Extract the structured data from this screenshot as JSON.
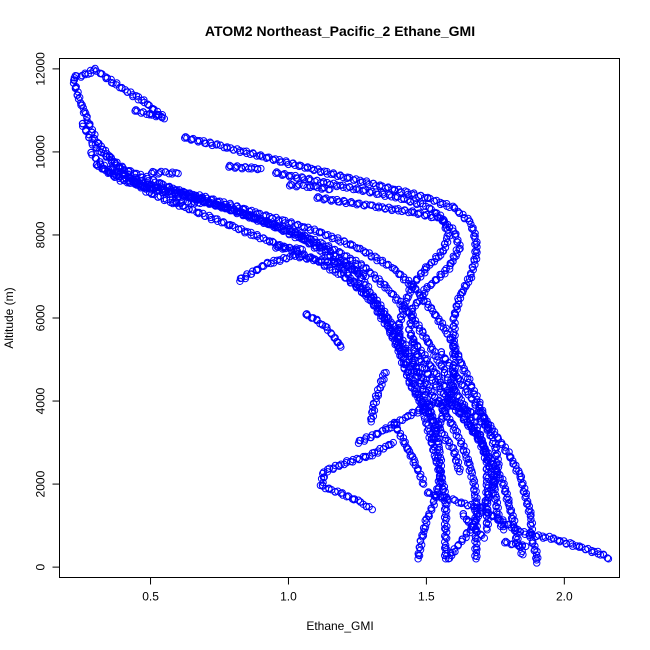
{
  "chart_data": {
    "type": "scatter",
    "title": "ATOM2 Northeast_Pacific_2 Ethane_GMI",
    "xlabel": "Ethane_GMI",
    "ylabel": "Altitude (m)",
    "xlim": [
      0.17,
      2.2
    ],
    "ylim": [
      -250,
      12250
    ],
    "xticks": [
      0.5,
      1.0,
      1.5,
      2.0
    ],
    "xtick_labels": [
      "0.5",
      "1.0",
      "1.5",
      "2.0"
    ],
    "yticks": [
      0,
      2000,
      4000,
      6000,
      8000,
      10000,
      12000
    ],
    "ytick_labels": [
      "0",
      "2000",
      "4000",
      "6000",
      "8000",
      "10000",
      "12000"
    ],
    "grid": false,
    "legend": "none",
    "marker": "open-circle",
    "color": "#0000ff",
    "tracks": [
      [
        [
          0.22,
          11800
        ],
        [
          0.26,
          11850
        ],
        [
          0.3,
          11980
        ],
        [
          0.38,
          11600
        ],
        [
          0.48,
          11200
        ],
        [
          0.55,
          10800
        ]
      ],
      [
        [
          0.22,
          11750
        ],
        [
          0.24,
          11300
        ],
        [
          0.27,
          10800
        ],
        [
          0.3,
          10300
        ],
        [
          0.36,
          9800
        ],
        [
          0.42,
          9400
        ],
        [
          0.5,
          9000
        ],
        [
          0.65,
          8600
        ],
        [
          0.8,
          8200
        ],
        [
          0.95,
          7800
        ],
        [
          1.1,
          7400
        ],
        [
          1.2,
          7000
        ],
        [
          1.3,
          6500
        ],
        [
          1.35,
          6000
        ],
        [
          1.38,
          5500
        ],
        [
          1.42,
          5000
        ],
        [
          1.45,
          4500
        ],
        [
          1.48,
          4000
        ],
        [
          1.5,
          3500
        ],
        [
          1.52,
          3000
        ],
        [
          1.54,
          2500
        ],
        [
          1.56,
          2000
        ],
        [
          1.57,
          1500
        ],
        [
          1.57,
          1000
        ],
        [
          1.57,
          500
        ],
        [
          1.57,
          200
        ]
      ],
      [
        [
          0.25,
          10700
        ],
        [
          0.3,
          10100
        ],
        [
          0.4,
          9600
        ],
        [
          0.55,
          9200
        ],
        [
          0.7,
          8800
        ],
        [
          0.85,
          8500
        ],
        [
          1.0,
          8100
        ],
        [
          1.15,
          7600
        ],
        [
          1.25,
          7100
        ],
        [
          1.3,
          6600
        ],
        [
          1.35,
          6100
        ],
        [
          1.4,
          5600
        ],
        [
          1.44,
          5100
        ],
        [
          1.47,
          4600
        ],
        [
          1.5,
          4100
        ],
        [
          1.52,
          3600
        ],
        [
          1.54,
          3100
        ],
        [
          1.55,
          2600
        ],
        [
          1.55,
          2100
        ],
        [
          1.53,
          1600
        ],
        [
          1.5,
          1100
        ],
        [
          1.48,
          600
        ],
        [
          1.47,
          200
        ]
      ],
      [
        [
          0.28,
          10000
        ],
        [
          0.35,
          9500
        ],
        [
          0.5,
          9100
        ],
        [
          0.65,
          8900
        ],
        [
          0.8,
          8600
        ],
        [
          0.95,
          8200
        ],
        [
          1.05,
          7900
        ],
        [
          1.15,
          7500
        ],
        [
          1.22,
          7000
        ],
        [
          1.3,
          6400
        ],
        [
          1.36,
          5800
        ],
        [
          1.42,
          5200
        ],
        [
          1.48,
          4600
        ],
        [
          1.53,
          4100
        ],
        [
          1.58,
          3600
        ],
        [
          1.62,
          3100
        ],
        [
          1.65,
          2600
        ],
        [
          1.67,
          2100
        ],
        [
          1.68,
          1600
        ],
        [
          1.68,
          1100
        ],
        [
          1.68,
          600
        ],
        [
          1.68,
          200
        ]
      ],
      [
        [
          0.3,
          9700
        ],
        [
          0.4,
          9300
        ],
        [
          0.6,
          9000
        ],
        [
          0.75,
          8700
        ],
        [
          0.9,
          8350
        ],
        [
          1.05,
          8000
        ],
        [
          1.18,
          7600
        ],
        [
          1.28,
          7200
        ],
        [
          1.36,
          6700
        ],
        [
          1.44,
          6100
        ],
        [
          1.5,
          5500
        ],
        [
          1.55,
          4900
        ],
        [
          1.6,
          4300
        ],
        [
          1.65,
          3700
        ],
        [
          1.7,
          3100
        ],
        [
          1.72,
          2500
        ],
        [
          1.72,
          1900
        ],
        [
          1.72,
          1300
        ],
        [
          1.72,
          900
        ]
      ],
      [
        [
          0.35,
          9600
        ],
        [
          0.5,
          9200
        ],
        [
          0.7,
          8900
        ],
        [
          0.9,
          8500
        ],
        [
          1.1,
          8100
        ],
        [
          1.25,
          7700
        ],
        [
          1.38,
          7200
        ],
        [
          1.46,
          6700
        ],
        [
          1.52,
          6200
        ],
        [
          1.58,
          5600
        ],
        [
          1.62,
          5000
        ],
        [
          1.66,
          4400
        ],
        [
          1.7,
          3800
        ],
        [
          1.72,
          3300
        ]
      ],
      [
        [
          0.62,
          10350
        ],
        [
          0.75,
          10150
        ],
        [
          0.9,
          9900
        ],
        [
          1.05,
          9650
        ],
        [
          1.2,
          9400
        ],
        [
          1.35,
          9150
        ],
        [
          1.5,
          8900
        ],
        [
          1.6,
          8650
        ],
        [
          1.66,
          8300
        ],
        [
          1.68,
          7900
        ],
        [
          1.68,
          7500
        ],
        [
          1.66,
          7000
        ],
        [
          1.62,
          6500
        ],
        [
          1.6,
          6000
        ],
        [
          1.6,
          5500
        ],
        [
          1.6,
          5000
        ],
        [
          1.6,
          4500
        ],
        [
          1.58,
          4000
        ],
        [
          1.55,
          3500
        ],
        [
          1.52,
          3000
        ]
      ],
      [
        [
          0.95,
          9500
        ],
        [
          1.1,
          9300
        ],
        [
          1.25,
          9100
        ],
        [
          1.4,
          8900
        ],
        [
          1.5,
          8700
        ],
        [
          1.56,
          8400
        ],
        [
          1.58,
          8000
        ],
        [
          1.56,
          7600
        ],
        [
          1.5,
          7200
        ],
        [
          1.45,
          6800
        ],
        [
          1.42,
          6300
        ],
        [
          1.4,
          5800
        ],
        [
          1.4,
          5300
        ],
        [
          1.42,
          4800
        ],
        [
          1.45,
          4300
        ],
        [
          1.5,
          3800
        ],
        [
          1.55,
          3300
        ],
        [
          1.6,
          2800
        ],
        [
          1.62,
          2300
        ]
      ],
      [
        [
          1.1,
          8900
        ],
        [
          1.3,
          8700
        ],
        [
          1.45,
          8550
        ],
        [
          1.55,
          8400
        ],
        [
          1.6,
          8100
        ],
        [
          1.62,
          7700
        ],
        [
          1.58,
          7200
        ],
        [
          1.5,
          6700
        ],
        [
          1.45,
          6200
        ],
        [
          1.44,
          5700
        ],
        [
          1.46,
          5200
        ],
        [
          1.5,
          4700
        ],
        [
          1.56,
          4200
        ],
        [
          1.62,
          3700
        ],
        [
          1.68,
          3200
        ],
        [
          1.72,
          2700
        ],
        [
          1.74,
          2200
        ],
        [
          1.75,
          1700
        ],
        [
          1.76,
          1200
        ],
        [
          1.78,
          900
        ]
      ],
      [
        [
          1.55,
          5200
        ],
        [
          1.6,
          4700
        ],
        [
          1.65,
          4200
        ],
        [
          1.7,
          3700
        ],
        [
          1.75,
          3200
        ],
        [
          1.8,
          2700
        ],
        [
          1.84,
          2200
        ],
        [
          1.86,
          1700
        ],
        [
          1.88,
          1200
        ],
        [
          1.88,
          700
        ],
        [
          1.9,
          300
        ],
        [
          1.9,
          100
        ]
      ],
      [
        [
          1.45,
          5500
        ],
        [
          1.5,
          5000
        ],
        [
          1.55,
          4500
        ],
        [
          1.6,
          4000
        ],
        [
          1.65,
          3500
        ],
        [
          1.7,
          3000
        ],
        [
          1.74,
          2500
        ],
        [
          1.78,
          2000
        ],
        [
          1.8,
          1500
        ],
        [
          1.82,
          1000
        ],
        [
          1.83,
          600
        ],
        [
          1.85,
          300
        ]
      ],
      [
        [
          1.25,
          3000
        ],
        [
          1.35,
          3300
        ],
        [
          1.45,
          3700
        ],
        [
          1.55,
          4000
        ],
        [
          1.65,
          3800
        ],
        [
          1.72,
          3400
        ],
        [
          1.75,
          2900
        ],
        [
          1.76,
          2400
        ],
        [
          1.74,
          1900
        ],
        [
          1.7,
          1400
        ],
        [
          1.66,
          900
        ],
        [
          1.6,
          400
        ],
        [
          1.58,
          200
        ]
      ],
      [
        [
          1.5,
          1800
        ],
        [
          1.6,
          1600
        ],
        [
          1.7,
          1400
        ],
        [
          1.8,
          1000
        ],
        [
          1.86,
          800
        ],
        [
          1.95,
          700
        ],
        [
          2.05,
          500
        ],
        [
          2.14,
          300
        ],
        [
          2.16,
          200
        ]
      ],
      [
        [
          1.3,
          1400
        ],
        [
          1.25,
          1600
        ],
        [
          1.18,
          1800
        ],
        [
          1.12,
          1950
        ],
        [
          1.13,
          2300
        ],
        [
          1.2,
          2500
        ],
        [
          1.3,
          2700
        ],
        [
          1.38,
          3000
        ]
      ],
      [
        [
          0.82,
          6900
        ],
        [
          0.92,
          7300
        ],
        [
          1.02,
          7500
        ],
        [
          1.1,
          7400
        ],
        [
          1.2,
          7300
        ],
        [
          1.28,
          7000
        ]
      ],
      [
        [
          0.44,
          11000
        ],
        [
          0.47,
          10950
        ],
        [
          0.5,
          10900
        ],
        [
          0.54,
          10850
        ]
      ],
      [
        [
          0.78,
          9650
        ],
        [
          0.84,
          9620
        ],
        [
          0.9,
          9600
        ]
      ],
      [
        [
          1.0,
          9200
        ],
        [
          1.05,
          9180
        ],
        [
          1.1,
          9150
        ],
        [
          1.15,
          9100
        ]
      ],
      [
        [
          0.5,
          9500
        ],
        [
          0.55,
          9500
        ],
        [
          0.6,
          9480
        ]
      ],
      [
        [
          0.58,
          8800
        ],
        [
          0.63,
          8780
        ],
        [
          0.68,
          8760
        ]
      ],
      [
        [
          0.95,
          7700
        ],
        [
          1.0,
          7680
        ],
        [
          1.05,
          7650
        ]
      ],
      [
        [
          1.06,
          6100
        ],
        [
          1.1,
          5950
        ],
        [
          1.14,
          5750
        ],
        [
          1.17,
          5500
        ],
        [
          1.19,
          5300
        ]
      ],
      [
        [
          1.35,
          4700
        ],
        [
          1.33,
          4300
        ],
        [
          1.31,
          3900
        ],
        [
          1.3,
          3500
        ]
      ],
      [
        [
          1.38,
          3500
        ],
        [
          1.42,
          3000
        ],
        [
          1.46,
          2500
        ],
        [
          1.49,
          2000
        ]
      ],
      [
        [
          1.63,
          1300
        ],
        [
          1.65,
          1100
        ],
        [
          1.68,
          900
        ],
        [
          1.71,
          700
        ]
      ],
      [
        [
          1.78,
          600
        ],
        [
          1.82,
          550
        ],
        [
          1.86,
          500
        ]
      ]
    ]
  }
}
